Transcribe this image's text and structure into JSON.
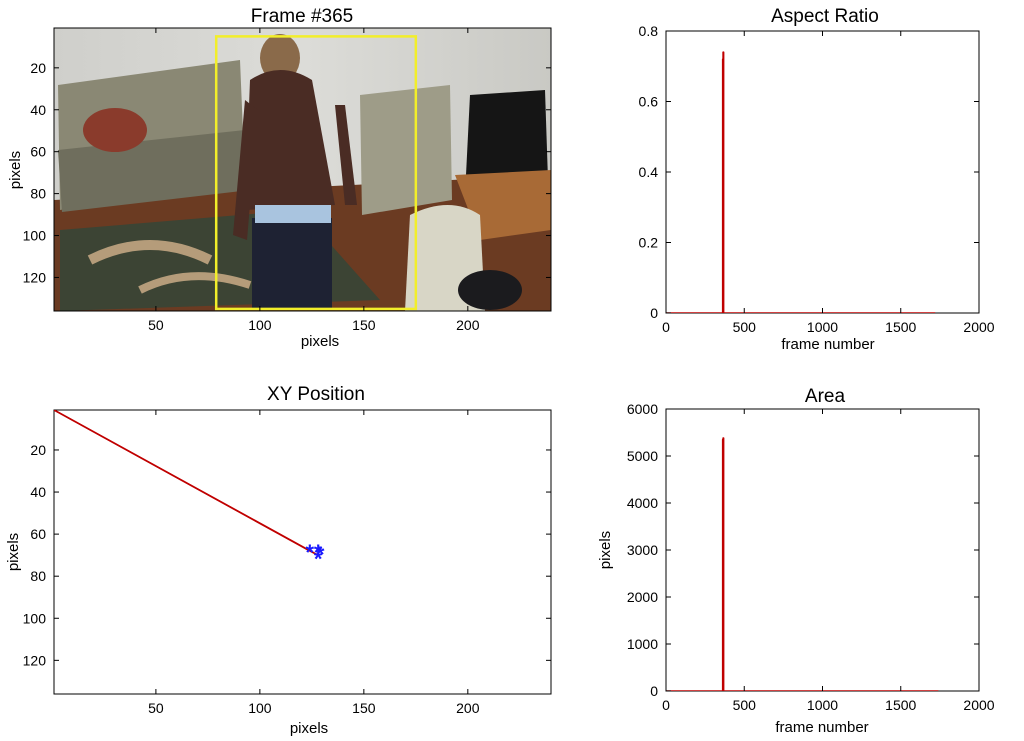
{
  "chart_data": [
    {
      "id": "frame",
      "type": "image",
      "title": "Frame #365",
      "xlabel": "pixels",
      "ylabel": "pixels",
      "xlim": [
        1,
        240
      ],
      "ylim": [
        1,
        136
      ],
      "y_reversed": true,
      "xticks": [
        50,
        100,
        150,
        200
      ],
      "yticks": [
        20,
        40,
        60,
        80,
        100,
        120
      ],
      "bounding_box": {
        "x": [
          79,
          175
        ],
        "y": [
          5,
          135
        ],
        "color": "#f2ee2a"
      }
    },
    {
      "id": "aspect",
      "type": "line",
      "title": "Aspect Ratio",
      "xlabel": "frame number",
      "ylabel": "",
      "xlim": [
        0,
        2000
      ],
      "ylim": [
        0,
        0.8
      ],
      "xticks": [
        0,
        500,
        1000,
        1500,
        2000
      ],
      "yticks": [
        0,
        0.2,
        0.4,
        0.6,
        0.8
      ],
      "series": [
        {
          "color": "#c00000",
          "x": [
            0,
            362,
            362,
            365,
            365,
            368,
            368,
            1720
          ],
          "y": [
            0,
            0,
            0.72,
            0.72,
            0.74,
            0.74,
            0,
            0
          ]
        }
      ]
    },
    {
      "id": "xy",
      "type": "line",
      "title": "XY Position",
      "xlabel": "pixels",
      "ylabel": "pixels",
      "xlim": [
        1,
        240
      ],
      "ylim": [
        1,
        136
      ],
      "y_reversed": true,
      "xticks": [
        50,
        100,
        150,
        200
      ],
      "yticks": [
        20,
        40,
        60,
        80,
        100,
        120
      ],
      "series": [
        {
          "color": "#c00000",
          "x": [
            1,
            124
          ],
          "y": [
            1,
            68
          ]
        },
        {
          "color": "#c00000",
          "x": [
            1,
            128
          ],
          "y": [
            1,
            70
          ]
        },
        {
          "color": "#c00000",
          "x": [
            124,
            128
          ],
          "y": [
            68,
            70
          ]
        }
      ],
      "markers": {
        "symbol": "*",
        "color": "#1a1aff",
        "x": [
          124,
          128,
          129,
          128
        ],
        "y": [
          68,
          68,
          69,
          71
        ]
      }
    },
    {
      "id": "area",
      "type": "line",
      "title": "Area",
      "xlabel": "frame number",
      "ylabel": "pixels",
      "xlim": [
        0,
        2000
      ],
      "ylim": [
        0,
        6000
      ],
      "xticks": [
        0,
        500,
        1000,
        1500,
        2000
      ],
      "yticks": [
        0,
        1000,
        2000,
        3000,
        4000,
        5000,
        6000
      ],
      "series": [
        {
          "color": "#c00000",
          "x": [
            0,
            362,
            362,
            365,
            365,
            368,
            368,
            1740
          ],
          "y": [
            0,
            0,
            5350,
            5350,
            5380,
            5380,
            0,
            0
          ]
        }
      ]
    }
  ]
}
